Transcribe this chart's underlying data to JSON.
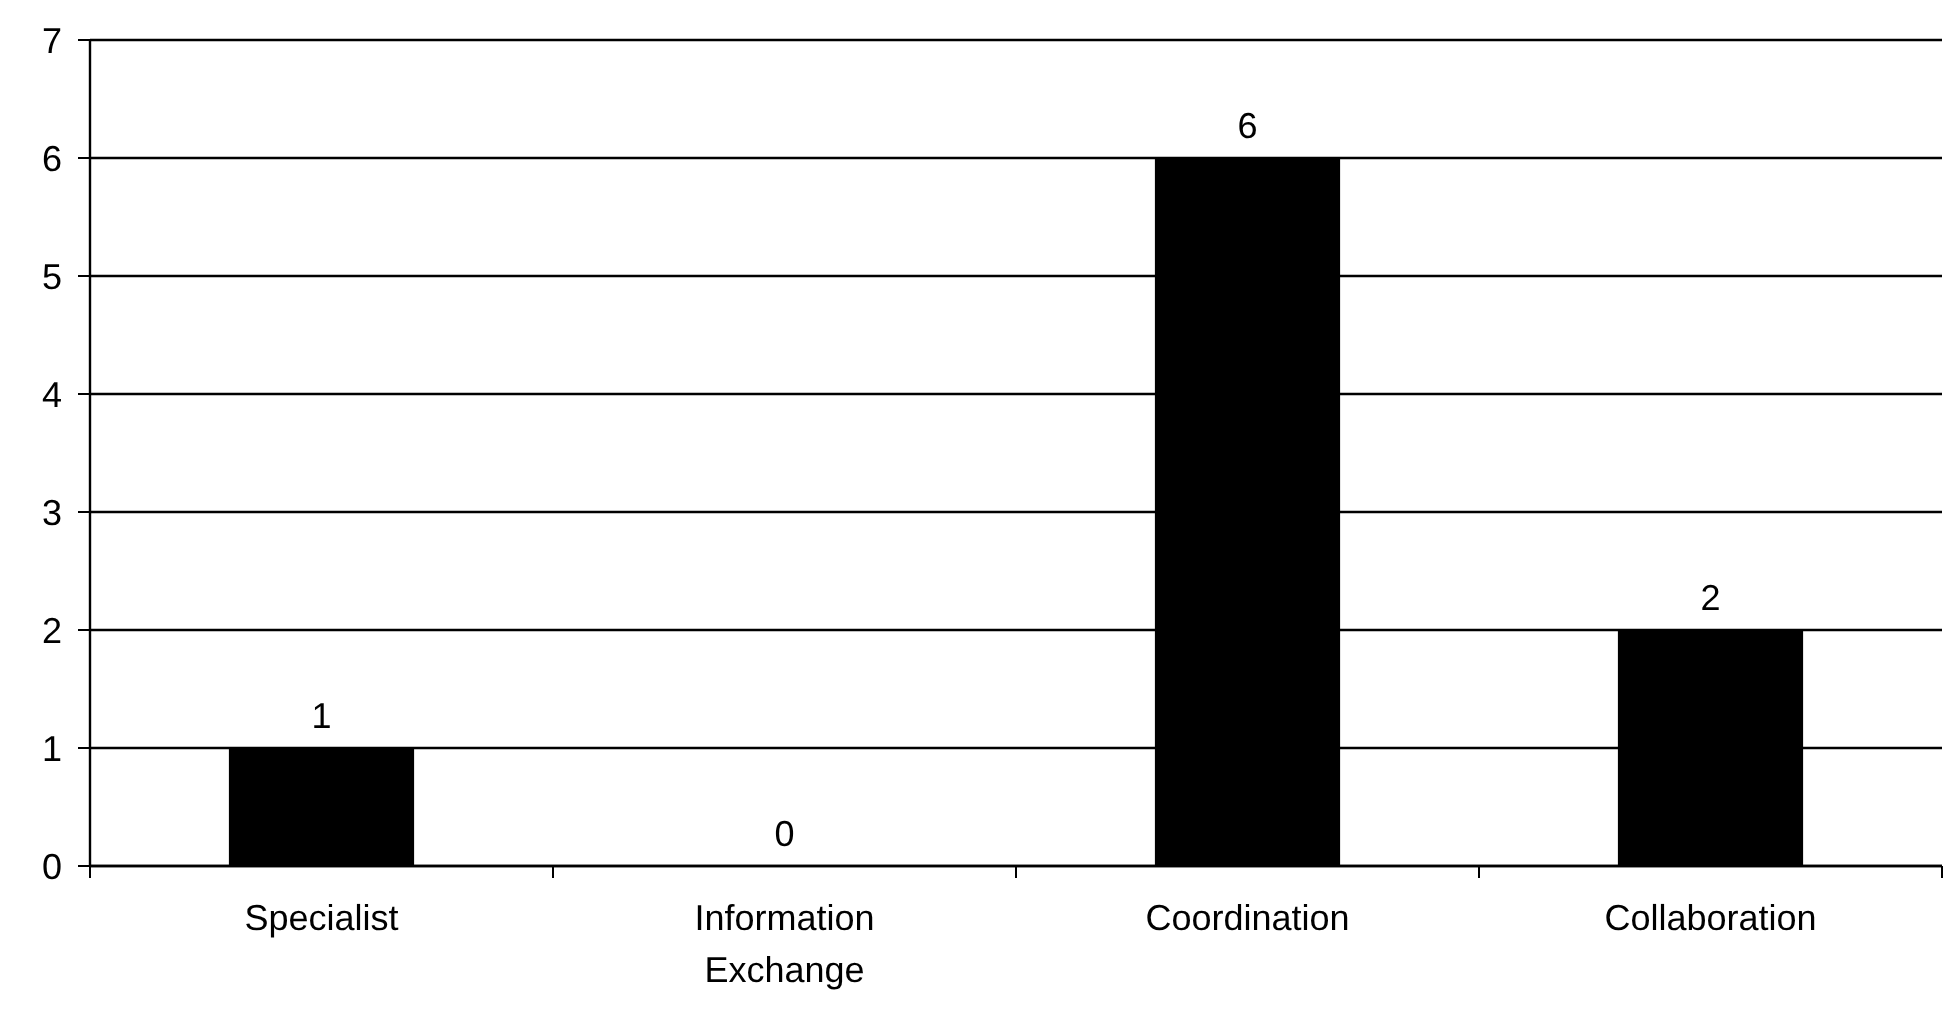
{
  "chart_data": {
    "type": "bar",
    "categories": [
      "Specialist",
      "Information Exchange",
      "Coordination",
      "Collaboration"
    ],
    "values": [
      1,
      0,
      6,
      2
    ],
    "color": "#000000",
    "ylim": [
      0,
      7
    ],
    "yticks": [
      0,
      1,
      2,
      3,
      4,
      5,
      6,
      7
    ],
    "grid": "y",
    "data_labels": true
  }
}
